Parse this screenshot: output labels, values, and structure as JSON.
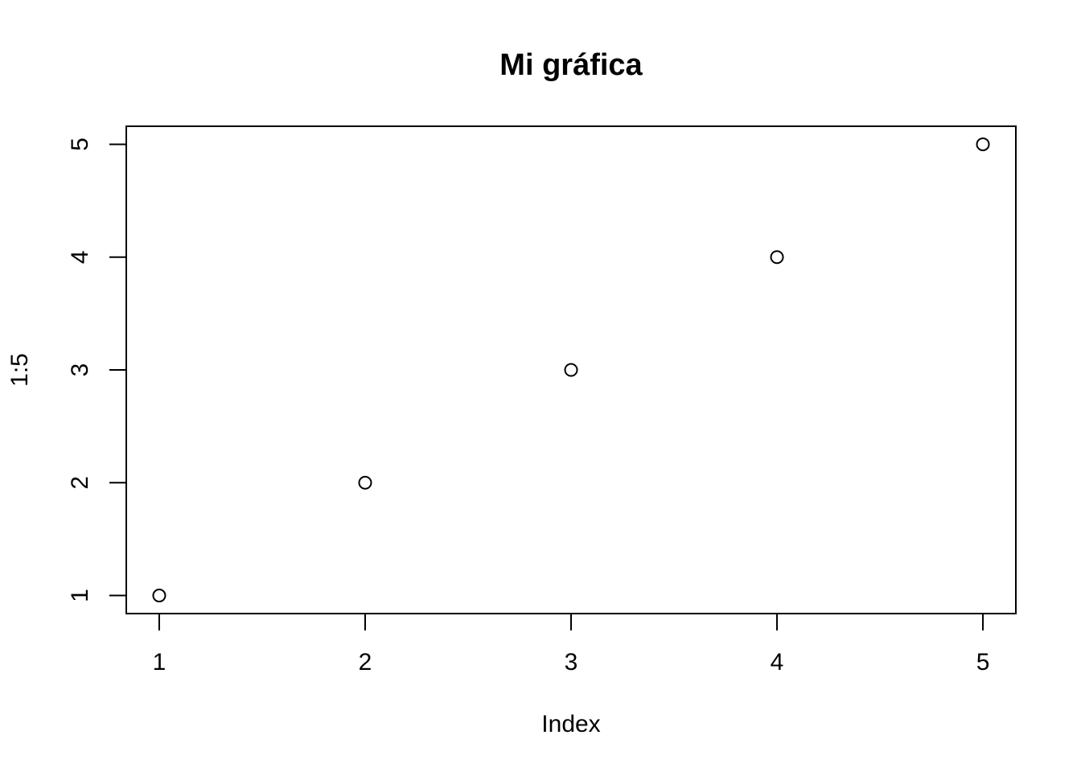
{
  "chart_data": {
    "type": "scatter",
    "title": "Mi gráfica",
    "xlabel": "Index",
    "ylabel": "1:5",
    "x": [
      1,
      2,
      3,
      4,
      5
    ],
    "y": [
      1,
      2,
      3,
      4,
      5
    ],
    "xlim": [
      0.84,
      5.16
    ],
    "ylim": [
      0.84,
      5.16
    ],
    "xticks": [
      1,
      2,
      3,
      4,
      5
    ],
    "yticks": [
      1,
      2,
      3,
      4,
      5
    ],
    "grid": false,
    "point_style": "open-circle",
    "colors": {
      "points": "#000000",
      "axes": "#000000",
      "background": "#ffffff"
    }
  }
}
